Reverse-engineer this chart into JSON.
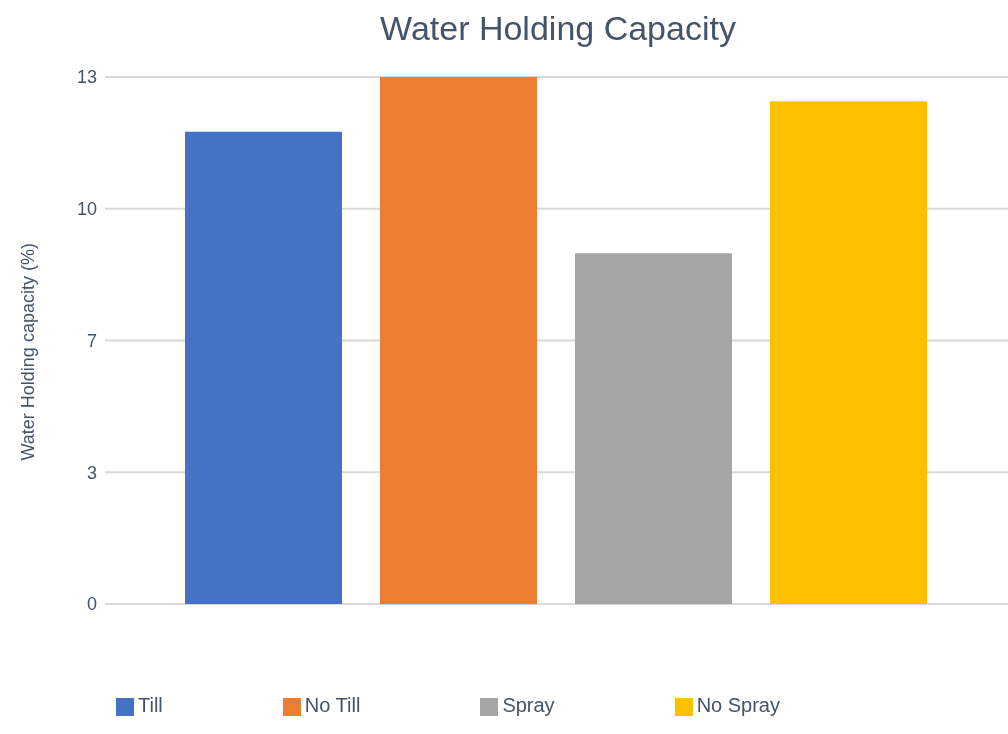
{
  "chart_data": {
    "type": "bar",
    "title": "Water Holding Capacity",
    "ylabel": "Water Holding capacity (%)",
    "categories": [
      null
    ],
    "series": [
      {
        "name": "Till",
        "color": "#4472c4",
        "values": [
          11.65
        ]
      },
      {
        "name": "No Till",
        "color": "#ed7d31",
        "values": [
          13
        ]
      },
      {
        "name": "Spray",
        "color": "#a5a5a5",
        "values": [
          8.65
        ]
      },
      {
        "name": "No Spray",
        "color": "#ffc000",
        "values": [
          12.4
        ]
      }
    ],
    "ylim": [
      0,
      13
    ],
    "yticks": [
      0,
      {
        "value": 3.25,
        "label": "3"
      },
      {
        "value": 6.5,
        "label": "7"
      },
      {
        "value": 9.75,
        "label": "10"
      },
      13
    ],
    "grid": "y",
    "legend": "bottom"
  }
}
